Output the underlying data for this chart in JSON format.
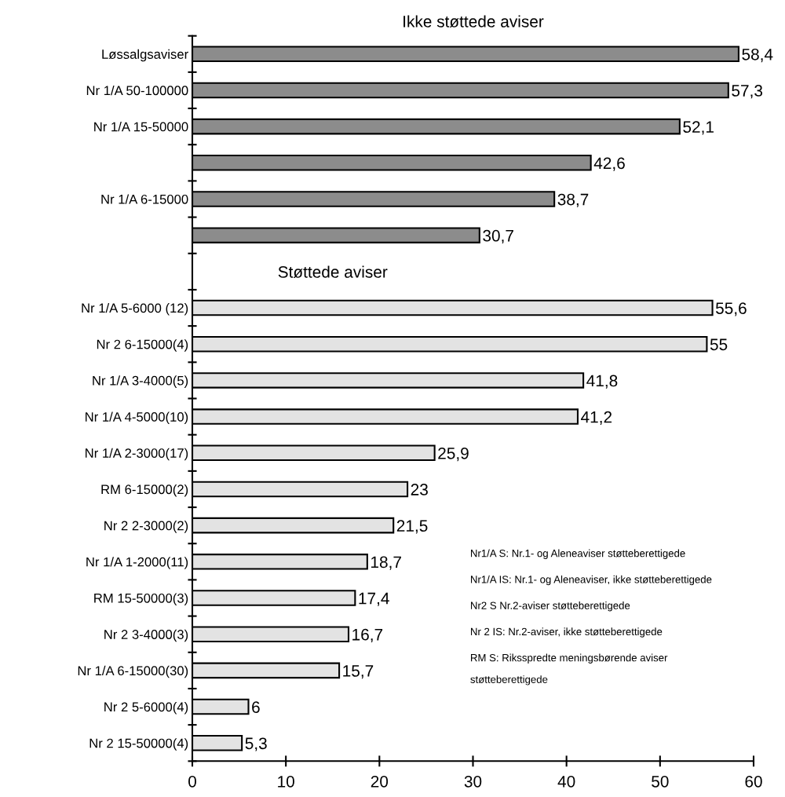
{
  "chart_data": {
    "type": "bar",
    "orientation": "horizontal",
    "title": "Ikke støttede aviser",
    "categories": [
      "Løssalgsaviser",
      "Nr 1/A 50-100000",
      "Nr 1/A 15-50000",
      null,
      "Nr 1/A 6-15000",
      null,
      null,
      "Nr 1/A 5-6000 (12)",
      "Nr 2 6-15000(4)",
      "Nr 1/A 3-4000(5)",
      "Nr 1/A 4-5000(10)",
      "Nr 1/A 2-3000(17)",
      "RM 6-15000(2)",
      "Nr 2 2-3000(2)",
      "Nr 1/A 1-2000(11)",
      "RM 15-50000(3)",
      "Nr 2 3-4000(3)",
      "Nr 1/A 6-15000(30)",
      "Nr 2 5-6000(4)",
      "Nr 2 15-50000(4)"
    ],
    "values": [
      58.4,
      57.3,
      52.1,
      42.6,
      38.7,
      30.7,
      null,
      55.6,
      55,
      41.8,
      41.2,
      25.9,
      23,
      21.5,
      18.7,
      17.4,
      16.7,
      15.7,
      6,
      5.3
    ],
    "value_labels": [
      "58,4",
      "57,3",
      "52,1",
      "42,6",
      "38,7",
      "30,7",
      null,
      "55,6",
      "55",
      "41,8",
      "41,2",
      "25,9",
      "23",
      "21,5",
      "18,7",
      "17,4",
      "16,7",
      "15,7",
      "6",
      "5,3"
    ],
    "colors": [
      "#8c8c8c",
      "#8c8c8c",
      "#8c8c8c",
      "#8c8c8c",
      "#8c8c8c",
      "#8c8c8c",
      "#ffffff",
      "#e3e3e3",
      "#e3e3e3",
      "#e3e3e3",
      "#e3e3e3",
      "#e3e3e3",
      "#e3e3e3",
      "#e3e3e3",
      "#e3e3e3",
      "#e3e3e3",
      "#e3e3e3",
      "#e3e3e3",
      "#e3e3e3",
      "#e3e3e3"
    ],
    "xlim": [
      0,
      60
    ],
    "xticks": [
      0,
      10,
      20,
      30,
      40,
      50,
      60
    ],
    "grid": false,
    "legend": false,
    "annotations": [
      "Støttede aviser",
      "Nr1/A S: Nr.1- og Aleneaviser støtteberettigede",
      "Nr1/A IS: Nr.1- og Aleneaviser, ikke støtteberettigede",
      "Nr2 S Nr.2-aviser støtteberettigede",
      "Nr 2 IS: Nr.2-aviser, ikke støtteberettigede",
      "RM S: Riksspredte meningsbørende aviser\nstøtteberettigede"
    ]
  }
}
